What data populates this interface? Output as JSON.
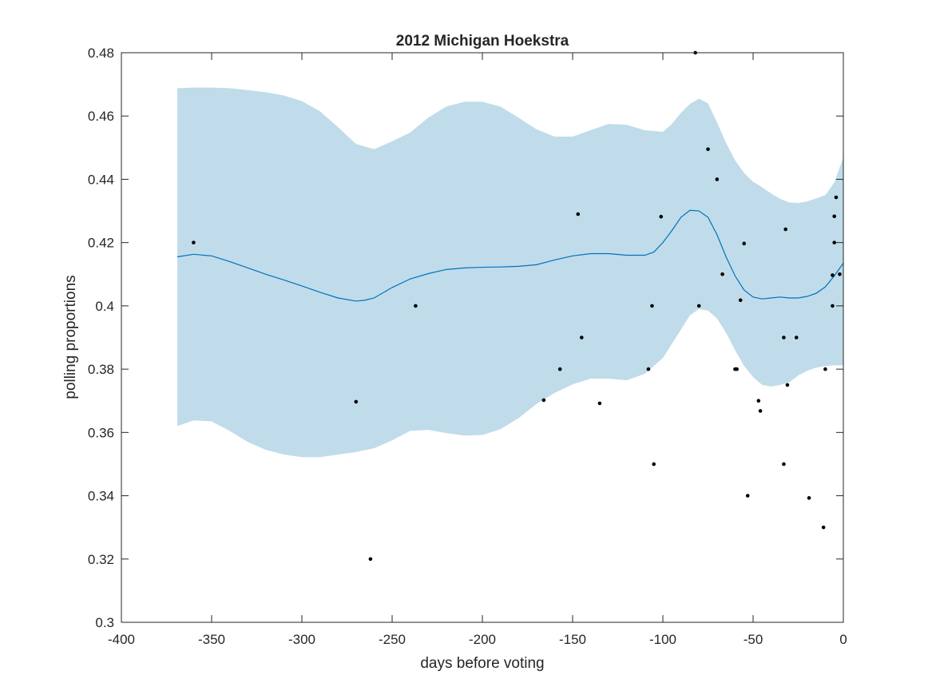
{
  "chart_data": {
    "type": "line",
    "title": "2012 Michigan Hoekstra",
    "xlabel": "days before voting",
    "ylabel": "polling proportions",
    "xlim": [
      -400,
      0
    ],
    "ylim": [
      0.3,
      0.48
    ],
    "xticks": [
      -400,
      -350,
      -300,
      -250,
      -200,
      -150,
      -100,
      -50,
      0
    ],
    "xtick_labels": [
      "-400",
      "-350",
      "-300",
      "-250",
      "-200",
      "-150",
      "-100",
      "-50",
      "0"
    ],
    "yticks": [
      0.3,
      0.32,
      0.34,
      0.36,
      0.38,
      0.4,
      0.42,
      0.44,
      0.46,
      0.48
    ],
    "ytick_labels": [
      "0.3",
      "0.32",
      "0.34",
      "0.36",
      "0.38",
      "0.4",
      "0.42",
      "0.44",
      "0.46",
      "0.48"
    ],
    "grid": false,
    "colors": {
      "band": "#c0dcea",
      "line": "#0072bd",
      "points": "#000000",
      "axes": "#262626"
    },
    "mean_line": {
      "x": [
        -369,
        -360,
        -350,
        -340,
        -330,
        -320,
        -310,
        -300,
        -290,
        -280,
        -270,
        -265,
        -260,
        -250,
        -240,
        -230,
        -220,
        -210,
        -200,
        -190,
        -180,
        -170,
        -160,
        -150,
        -140,
        -130,
        -120,
        -110,
        -105,
        -100,
        -95,
        -90,
        -85,
        -80,
        -75,
        -70,
        -65,
        -60,
        -55,
        -50,
        -45,
        -40,
        -35,
        -30,
        -25,
        -20,
        -15,
        -10,
        -5,
        0
      ],
      "y": [
        0.4155,
        0.4163,
        0.4158,
        0.414,
        0.412,
        0.41,
        0.4082,
        0.4063,
        0.4043,
        0.4025,
        0.4015,
        0.4018,
        0.4025,
        0.4058,
        0.4085,
        0.4102,
        0.4115,
        0.412,
        0.4122,
        0.4123,
        0.4125,
        0.413,
        0.4145,
        0.4158,
        0.4165,
        0.4165,
        0.416,
        0.416,
        0.417,
        0.42,
        0.4238,
        0.428,
        0.4302,
        0.43,
        0.428,
        0.4225,
        0.4155,
        0.4095,
        0.405,
        0.4028,
        0.4022,
        0.4025,
        0.4028,
        0.4025,
        0.4025,
        0.403,
        0.404,
        0.406,
        0.4095,
        0.4135
      ]
    },
    "band_upper": {
      "x": [
        -369,
        -360,
        -350,
        -340,
        -330,
        -320,
        -310,
        -300,
        -290,
        -280,
        -270,
        -260,
        -250,
        -240,
        -230,
        -220,
        -210,
        -200,
        -190,
        -180,
        -170,
        -160,
        -150,
        -140,
        -130,
        -120,
        -110,
        -100,
        -95,
        -90,
        -85,
        -80,
        -75,
        -70,
        -65,
        -60,
        -55,
        -50,
        -45,
        -40,
        -35,
        -30,
        -25,
        -20,
        -15,
        -10,
        -5,
        0
      ],
      "y": [
        0.4688,
        0.469,
        0.469,
        0.4688,
        0.4682,
        0.4675,
        0.4665,
        0.4647,
        0.4615,
        0.4565,
        0.4512,
        0.4495,
        0.452,
        0.4548,
        0.4595,
        0.463,
        0.4645,
        0.4645,
        0.463,
        0.4595,
        0.4558,
        0.4535,
        0.4535,
        0.4555,
        0.4575,
        0.4572,
        0.4555,
        0.455,
        0.4575,
        0.461,
        0.4638,
        0.4655,
        0.464,
        0.458,
        0.4515,
        0.446,
        0.442,
        0.4392,
        0.4375,
        0.4355,
        0.4338,
        0.4327,
        0.4325,
        0.433,
        0.434,
        0.435,
        0.439,
        0.447
      ]
    },
    "band_lower": {
      "x": [
        -369,
        -360,
        -350,
        -340,
        -330,
        -320,
        -310,
        -300,
        -290,
        -280,
        -270,
        -260,
        -250,
        -240,
        -230,
        -220,
        -210,
        -200,
        -190,
        -180,
        -170,
        -160,
        -150,
        -140,
        -130,
        -120,
        -110,
        -100,
        -95,
        -90,
        -85,
        -80,
        -75,
        -70,
        -65,
        -60,
        -55,
        -50,
        -45,
        -40,
        -35,
        -30,
        -25,
        -20,
        -15,
        -10,
        -5,
        0
      ],
      "y": [
        0.362,
        0.3638,
        0.3635,
        0.3605,
        0.357,
        0.3545,
        0.353,
        0.3522,
        0.3522,
        0.353,
        0.3538,
        0.355,
        0.3575,
        0.3605,
        0.3608,
        0.3598,
        0.359,
        0.3592,
        0.361,
        0.3645,
        0.369,
        0.3725,
        0.3752,
        0.377,
        0.377,
        0.3765,
        0.3785,
        0.3835,
        0.388,
        0.3925,
        0.397,
        0.399,
        0.3985,
        0.396,
        0.3915,
        0.386,
        0.381,
        0.3775,
        0.375,
        0.3745,
        0.375,
        0.3758,
        0.378,
        0.3795,
        0.3805,
        0.381,
        0.3812,
        0.3812
      ]
    },
    "points": [
      {
        "x": -360,
        "y": 0.42
      },
      {
        "x": -270,
        "y": 0.3697
      },
      {
        "x": -262,
        "y": 0.32
      },
      {
        "x": -237,
        "y": 0.4
      },
      {
        "x": -166,
        "y": 0.3702
      },
      {
        "x": -157,
        "y": 0.38
      },
      {
        "x": -147,
        "y": 0.429
      },
      {
        "x": -145,
        "y": 0.39
      },
      {
        "x": -135,
        "y": 0.3692
      },
      {
        "x": -108,
        "y": 0.38
      },
      {
        "x": -106,
        "y": 0.4
      },
      {
        "x": -105,
        "y": 0.35
      },
      {
        "x": -101,
        "y": 0.4282
      },
      {
        "x": -82,
        "y": 0.48
      },
      {
        "x": -80,
        "y": 0.4
      },
      {
        "x": -75,
        "y": 0.4495
      },
      {
        "x": -70,
        "y": 0.44
      },
      {
        "x": -67,
        "y": 0.41
      },
      {
        "x": -60,
        "y": 0.38
      },
      {
        "x": -59,
        "y": 0.38
      },
      {
        "x": -57,
        "y": 0.4018
      },
      {
        "x": -55,
        "y": 0.4197
      },
      {
        "x": -53,
        "y": 0.34
      },
      {
        "x": -47,
        "y": 0.37
      },
      {
        "x": -46,
        "y": 0.3668
      },
      {
        "x": -33,
        "y": 0.39
      },
      {
        "x": -33,
        "y": 0.35
      },
      {
        "x": -32,
        "y": 0.4242
      },
      {
        "x": -31,
        "y": 0.375
      },
      {
        "x": -26,
        "y": 0.39
      },
      {
        "x": -19,
        "y": 0.3393
      },
      {
        "x": -11,
        "y": 0.33
      },
      {
        "x": -10,
        "y": 0.38
      },
      {
        "x": -6,
        "y": 0.4
      },
      {
        "x": -6,
        "y": 0.4097
      },
      {
        "x": -5,
        "y": 0.4283
      },
      {
        "x": -5,
        "y": 0.42
      },
      {
        "x": -4,
        "y": 0.4343
      },
      {
        "x": -2,
        "y": 0.41
      }
    ]
  }
}
